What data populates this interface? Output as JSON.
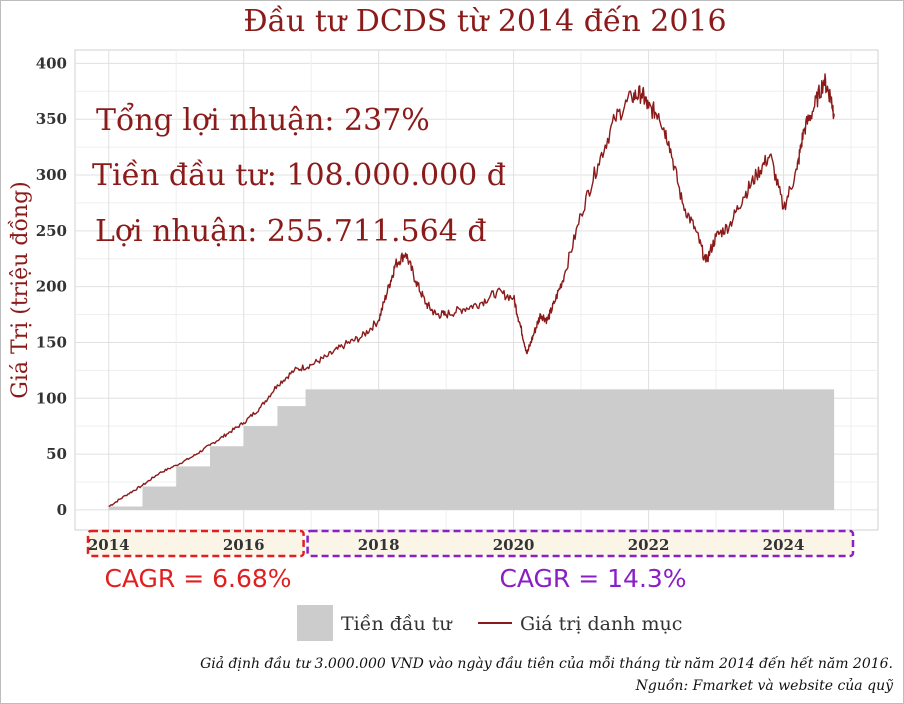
{
  "chart_data": {
    "type": "area+line",
    "title": "Đầu tư DCDS từ 2014 đến 2016",
    "ylabel": "Giá Trị (triệu đồng)",
    "xlabel": "",
    "xlim": [
      2013.5,
      2025.4
    ],
    "ylim": [
      -18,
      412
    ],
    "yticks": [
      0,
      50,
      100,
      150,
      200,
      250,
      300,
      350,
      400
    ],
    "xticks": [
      2014,
      2016,
      2018,
      2020,
      2022,
      2024
    ],
    "grid": true,
    "legend_position": "bottom",
    "legend": [
      "Tiền đầu tư",
      "Giá trị danh mục"
    ],
    "series": [
      {
        "name": "Tiền đầu tư",
        "type": "area",
        "color": "#cccccc",
        "x": [
          2014.0,
          2014.5,
          2015.0,
          2015.5,
          2016.0,
          2016.5,
          2016.917,
          2024.75
        ],
        "y": [
          3,
          21,
          39,
          57,
          75,
          93,
          108,
          108
        ]
      },
      {
        "name": "Giá trị danh mục",
        "type": "line",
        "color": "#8b1a1a",
        "x": [
          2014.0,
          2014.25,
          2014.5,
          2014.75,
          2015.0,
          2015.25,
          2015.5,
          2015.75,
          2016.0,
          2016.25,
          2016.5,
          2016.75,
          2017.0,
          2017.25,
          2017.5,
          2017.75,
          2018.0,
          2018.15,
          2018.25,
          2018.4,
          2018.55,
          2018.7,
          2018.85,
          2019.0,
          2019.25,
          2019.5,
          2019.75,
          2020.0,
          2020.1,
          2020.2,
          2020.3,
          2020.4,
          2020.5,
          2020.6,
          2020.75,
          2021.0,
          2021.25,
          2021.5,
          2021.75,
          2021.9,
          2022.0,
          2022.15,
          2022.3,
          2022.5,
          2022.7,
          2022.85,
          2023.0,
          2023.2,
          2023.4,
          2023.6,
          2023.8,
          2024.0,
          2024.2,
          2024.3,
          2024.45,
          2024.6,
          2024.7,
          2024.75
        ],
        "y": [
          3,
          13,
          22,
          33,
          40,
          48,
          58,
          68,
          78,
          92,
          112,
          125,
          130,
          138,
          148,
          155,
          170,
          200,
          220,
          230,
          205,
          185,
          175,
          175,
          180,
          185,
          195,
          190,
          165,
          140,
          158,
          175,
          170,
          185,
          210,
          265,
          310,
          350,
          370,
          373,
          360,
          355,
          330,
          275,
          250,
          222,
          245,
          255,
          280,
          300,
          318,
          270,
          305,
          340,
          360,
          385,
          370,
          355
        ]
      }
    ],
    "annotations": [
      "Tổng lợi nhuận: 237%",
      "Tiền đầu tư: 108.000.000 đ",
      "Lợi nhuận: 255.711.564 đ"
    ],
    "periods": [
      {
        "label": "CAGR = 6.68%",
        "from": 2014,
        "to": 2016.917,
        "color": "#e02020"
      },
      {
        "label": "CAGR = 14.3%",
        "from": 2016.917,
        "to": 2024.75,
        "color": "#8a1fc4"
      }
    ],
    "footnote": [
      "Giả định đầu tư 3.000.000 VND vào ngày đầu tiên của mỗi tháng từ năm 2014 đến hết năm 2016.",
      "Nguồn: Fmarket và website của quỹ"
    ]
  }
}
